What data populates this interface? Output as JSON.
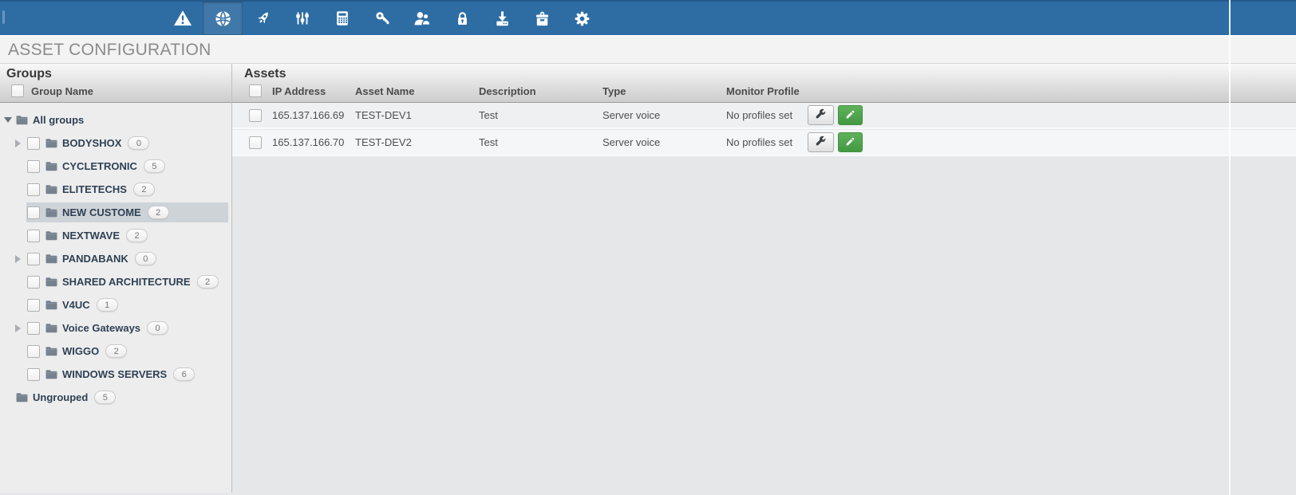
{
  "colors": {
    "topbar_blue": "#2e6da4",
    "active_icon_blue": "#4078aa",
    "edit_green": "#459844",
    "selected_row_gray": "#ced3d8"
  },
  "topbar": {
    "icons": [
      {
        "name": "alarm",
        "active": false
      },
      {
        "name": "network",
        "active": true
      },
      {
        "name": "rocket",
        "active": false
      },
      {
        "name": "tuning",
        "active": false
      },
      {
        "name": "calculator",
        "active": false
      },
      {
        "name": "key",
        "active": false
      },
      {
        "name": "users",
        "active": false
      },
      {
        "name": "lock",
        "active": false
      },
      {
        "name": "download",
        "active": false
      },
      {
        "name": "toolbox",
        "active": false
      },
      {
        "name": "settings",
        "active": false
      }
    ]
  },
  "page_title": "ASSET CONFIGURATION",
  "groups_panel": {
    "title": "Groups",
    "column_header": "Group Name",
    "tree": [
      {
        "label": "All groups",
        "level": 0,
        "arrow": "expanded",
        "checkbox": false,
        "count": null,
        "selected": false
      },
      {
        "label": "BODYSHOX",
        "level": 1,
        "arrow": "collapsed",
        "checkbox": true,
        "count": "0",
        "selected": false
      },
      {
        "label": "CYCLETRONIC",
        "level": 1,
        "arrow": null,
        "checkbox": true,
        "count": "5",
        "selected": false
      },
      {
        "label": "ELITETECHS",
        "level": 1,
        "arrow": null,
        "checkbox": true,
        "count": "2",
        "selected": false
      },
      {
        "label": "NEW CUSTOME",
        "level": 1,
        "arrow": null,
        "checkbox": true,
        "count": "2",
        "selected": true
      },
      {
        "label": "NEXTWAVE",
        "level": 1,
        "arrow": null,
        "checkbox": true,
        "count": "2",
        "selected": false
      },
      {
        "label": "PANDABANK",
        "level": 1,
        "arrow": "collapsed",
        "checkbox": true,
        "count": "0",
        "selected": false
      },
      {
        "label": "SHARED ARCHITECTURE",
        "level": 1,
        "arrow": null,
        "checkbox": true,
        "count": "2",
        "selected": false
      },
      {
        "label": "V4UC",
        "level": 1,
        "arrow": null,
        "checkbox": true,
        "count": "1",
        "selected": false
      },
      {
        "label": "Voice Gateways",
        "level": 1,
        "arrow": "collapsed",
        "checkbox": true,
        "count": "0",
        "selected": false
      },
      {
        "label": "WIGGO",
        "level": 1,
        "arrow": null,
        "checkbox": true,
        "count": "2",
        "selected": false
      },
      {
        "label": "WINDOWS SERVERS",
        "level": 1,
        "arrow": null,
        "checkbox": true,
        "count": "6",
        "selected": false
      },
      {
        "label": "Ungrouped",
        "level": 0,
        "arrow": null,
        "checkbox": false,
        "count": "5",
        "selected": false
      }
    ]
  },
  "assets_panel": {
    "title": "Assets",
    "columns": [
      "IP Address",
      "Asset Name",
      "Description",
      "Type",
      "Monitor Profile"
    ],
    "rows": [
      {
        "ip": "165.137.166.69",
        "name": "TEST-DEV1",
        "description": "Test",
        "type": "Server voice",
        "monitor_profile": "No profiles set"
      },
      {
        "ip": "165.137.166.70",
        "name": "TEST-DEV2",
        "description": "Test",
        "type": "Server voice",
        "monitor_profile": "No profiles set"
      }
    ]
  }
}
